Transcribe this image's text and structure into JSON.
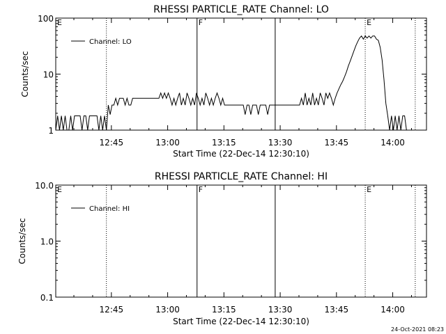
{
  "footer_timestamp": "24-Oct-2021 08:23",
  "chart_data": [
    {
      "type": "line",
      "title": "RHESSI PARTICLE_RATE Channel: LO",
      "xlabel": "Start Time (22-Dec-14 12:30:10)",
      "ylabel": "Counts/sec",
      "yscale": "log",
      "ylim": [
        1,
        100
      ],
      "yticks": [
        {
          "value": 1,
          "label": "1"
        },
        {
          "value": 10,
          "label": "10"
        },
        {
          "value": 100,
          "label": "100"
        }
      ],
      "xlim": [
        "12:30:10",
        "14:09:00"
      ],
      "xticks": [
        "12:45",
        "13:00",
        "13:15",
        "13:30",
        "13:45",
        "14:00"
      ],
      "legend": {
        "label": "Channel: LO",
        "position": "top-left"
      },
      "markers": [
        {
          "time": "12:30:10",
          "label": "E",
          "style": "none"
        },
        {
          "time": "12:43:40",
          "label": "",
          "style": "dotted"
        },
        {
          "time": "13:07:50",
          "label": "F",
          "style": "solid"
        },
        {
          "time": "13:28:40",
          "label": "",
          "style": "solid"
        },
        {
          "time": "13:52:40",
          "label": "E",
          "style": "dotted"
        },
        {
          "time": "14:06:00",
          "label": "",
          "style": "dotted"
        }
      ],
      "series": [
        {
          "name": "Channel: LO",
          "points": [
            [
              "12:30:10",
              1.0
            ],
            [
              "12:30:40",
              1.8
            ],
            [
              "12:31:10",
              1.0
            ],
            [
              "12:31:40",
              1.8
            ],
            [
              "12:32:10",
              1.0
            ],
            [
              "12:32:40",
              1.8
            ],
            [
              "12:33:10",
              1.0
            ],
            [
              "12:33:40",
              1.0
            ],
            [
              "12:34:10",
              1.8
            ],
            [
              "12:34:40",
              1.0
            ],
            [
              "12:35:10",
              1.8
            ],
            [
              "12:35:40",
              1.8
            ],
            [
              "12:36:10",
              1.8
            ],
            [
              "12:36:40",
              1.8
            ],
            [
              "12:37:10",
              1.0
            ],
            [
              "12:37:40",
              1.8
            ],
            [
              "12:38:10",
              1.8
            ],
            [
              "12:38:40",
              1.0
            ],
            [
              "12:39:10",
              1.8
            ],
            [
              "12:39:40",
              1.8
            ],
            [
              "12:40:10",
              1.8
            ],
            [
              "12:40:40",
              1.8
            ],
            [
              "12:41:10",
              1.8
            ],
            [
              "12:41:40",
              1.0
            ],
            [
              "12:42:10",
              1.8
            ],
            [
              "12:42:40",
              1.0
            ],
            [
              "12:43:10",
              1.8
            ],
            [
              "12:43:40",
              1.0
            ],
            [
              "12:44:10",
              2.8
            ],
            [
              "12:44:40",
              1.9
            ],
            [
              "12:45:10",
              2.8
            ],
            [
              "12:45:40",
              2.8
            ],
            [
              "12:46:10",
              3.7
            ],
            [
              "12:46:40",
              2.8
            ],
            [
              "12:47:10",
              3.7
            ],
            [
              "12:47:40",
              3.7
            ],
            [
              "12:48:10",
              3.7
            ],
            [
              "12:48:40",
              2.8
            ],
            [
              "12:49:10",
              3.7
            ],
            [
              "12:49:40",
              2.8
            ],
            [
              "12:50:10",
              2.8
            ],
            [
              "12:50:40",
              3.7
            ],
            [
              "12:51:10",
              3.7
            ],
            [
              "12:51:40",
              3.7
            ],
            [
              "12:52:40",
              3.7
            ],
            [
              "12:53:40",
              3.7
            ],
            [
              "12:54:40",
              3.7
            ],
            [
              "12:55:40",
              3.7
            ],
            [
              "12:56:40",
              3.7
            ],
            [
              "12:57:40",
              3.7
            ],
            [
              "12:58:10",
              4.6
            ],
            [
              "12:58:40",
              3.7
            ],
            [
              "12:59:10",
              4.6
            ],
            [
              "12:59:40",
              3.7
            ],
            [
              "13:00:10",
              4.6
            ],
            [
              "13:00:40",
              3.7
            ],
            [
              "13:01:10",
              2.8
            ],
            [
              "13:01:40",
              3.7
            ],
            [
              "13:02:10",
              2.8
            ],
            [
              "13:02:40",
              3.7
            ],
            [
              "13:03:10",
              4.6
            ],
            [
              "13:03:40",
              2.8
            ],
            [
              "13:04:10",
              3.7
            ],
            [
              "13:04:40",
              2.8
            ],
            [
              "13:05:10",
              4.6
            ],
            [
              "13:05:40",
              3.7
            ],
            [
              "13:06:10",
              2.8
            ],
            [
              "13:06:40",
              3.7
            ],
            [
              "13:07:10",
              2.8
            ],
            [
              "13:07:40",
              4.6
            ],
            [
              "13:08:10",
              3.7
            ],
            [
              "13:08:40",
              2.8
            ],
            [
              "13:09:10",
              3.7
            ],
            [
              "13:09:40",
              2.8
            ],
            [
              "13:10:10",
              4.6
            ],
            [
              "13:10:40",
              3.7
            ],
            [
              "13:11:10",
              2.8
            ],
            [
              "13:11:40",
              3.7
            ],
            [
              "13:12:10",
              2.8
            ],
            [
              "13:12:40",
              3.7
            ],
            [
              "13:13:10",
              4.6
            ],
            [
              "13:13:40",
              3.7
            ],
            [
              "13:14:10",
              2.8
            ],
            [
              "13:14:40",
              3.7
            ],
            [
              "13:15:10",
              2.8
            ],
            [
              "13:15:40",
              2.8
            ],
            [
              "13:16:10",
              2.8
            ],
            [
              "13:16:40",
              2.8
            ],
            [
              "13:17:10",
              2.8
            ],
            [
              "13:17:40",
              2.8
            ],
            [
              "13:18:10",
              2.8
            ],
            [
              "13:18:40",
              2.8
            ],
            [
              "13:19:10",
              2.8
            ],
            [
              "13:19:40",
              2.8
            ],
            [
              "13:20:10",
              2.8
            ],
            [
              "13:20:40",
              1.9
            ],
            [
              "13:21:10",
              2.8
            ],
            [
              "13:21:40",
              2.8
            ],
            [
              "13:22:10",
              1.9
            ],
            [
              "13:22:40",
              2.8
            ],
            [
              "13:23:10",
              2.8
            ],
            [
              "13:23:40",
              2.8
            ],
            [
              "13:24:10",
              1.9
            ],
            [
              "13:24:40",
              2.8
            ],
            [
              "13:25:10",
              2.8
            ],
            [
              "13:25:40",
              2.8
            ],
            [
              "13:26:10",
              2.8
            ],
            [
              "13:26:40",
              1.9
            ],
            [
              "13:27:10",
              2.8
            ],
            [
              "13:27:40",
              2.8
            ],
            [
              "13:28:40",
              2.8
            ],
            [
              "13:29:40",
              2.8
            ],
            [
              "13:30:40",
              2.8
            ],
            [
              "13:31:40",
              2.8
            ],
            [
              "13:32:40",
              2.8
            ],
            [
              "13:33:40",
              2.8
            ],
            [
              "13:34:40",
              2.8
            ],
            [
              "13:35:10",
              2.8
            ],
            [
              "13:35:40",
              3.7
            ],
            [
              "13:36:10",
              2.8
            ],
            [
              "13:36:40",
              4.6
            ],
            [
              "13:37:10",
              2.8
            ],
            [
              "13:37:40",
              3.7
            ],
            [
              "13:38:10",
              2.8
            ],
            [
              "13:38:40",
              4.6
            ],
            [
              "13:39:10",
              2.8
            ],
            [
              "13:39:40",
              3.7
            ],
            [
              "13:40:10",
              2.8
            ],
            [
              "13:40:40",
              4.6
            ],
            [
              "13:41:10",
              3.7
            ],
            [
              "13:41:40",
              2.8
            ],
            [
              "13:42:10",
              4.6
            ],
            [
              "13:42:40",
              3.7
            ],
            [
              "13:43:10",
              4.6
            ],
            [
              "13:43:40",
              3.7
            ],
            [
              "13:44:10",
              2.8
            ],
            [
              "13:44:40",
              3.7
            ],
            [
              "13:45:10",
              4.6
            ],
            [
              "13:45:40",
              5.5
            ],
            [
              "13:46:10",
              6.5
            ],
            [
              "13:46:40",
              7.5
            ],
            [
              "13:47:10",
              9.0
            ],
            [
              "13:47:40",
              11.0
            ],
            [
              "13:48:10",
              14.0
            ],
            [
              "13:48:40",
              17.0
            ],
            [
              "13:49:10",
              21.0
            ],
            [
              "13:49:40",
              26.0
            ],
            [
              "13:50:10",
              32.0
            ],
            [
              "13:50:40",
              38.0
            ],
            [
              "13:51:10",
              44.0
            ],
            [
              "13:51:40",
              48.0
            ],
            [
              "13:52:10",
              42.0
            ],
            [
              "13:52:40",
              48.0
            ],
            [
              "13:53:10",
              44.0
            ],
            [
              "13:53:40",
              48.0
            ],
            [
              "13:54:10",
              44.0
            ],
            [
              "13:54:40",
              48.0
            ],
            [
              "13:55:10",
              48.0
            ],
            [
              "13:55:40",
              42.0
            ],
            [
              "13:56:10",
              40.0
            ],
            [
              "13:56:40",
              30.0
            ],
            [
              "13:57:10",
              18.0
            ],
            [
              "13:57:40",
              8.0
            ],
            [
              "13:58:10",
              3.0
            ],
            [
              "13:58:40",
              1.8
            ],
            [
              "13:59:10",
              1.0
            ],
            [
              "13:59:40",
              1.8
            ],
            [
              "14:00:10",
              1.0
            ],
            [
              "14:00:40",
              1.8
            ],
            [
              "14:01:10",
              1.0
            ],
            [
              "14:01:40",
              1.8
            ],
            [
              "14:02:10",
              1.0
            ],
            [
              "14:02:40",
              1.8
            ],
            [
              "14:03:10",
              1.8
            ],
            [
              "14:03:40",
              1.0
            ]
          ]
        }
      ]
    },
    {
      "type": "line",
      "title": "RHESSI PARTICLE_RATE Channel: HI",
      "xlabel": "Start Time (22-Dec-14 12:30:10)",
      "ylabel": "Counts/sec",
      "yscale": "log",
      "ylim": [
        0.1,
        10
      ],
      "yticks": [
        {
          "value": 0.1,
          "label": "0.1"
        },
        {
          "value": 1,
          "label": "1.0"
        },
        {
          "value": 10,
          "label": "10.0"
        }
      ],
      "xlim": [
        "12:30:10",
        "14:09:00"
      ],
      "xticks": [
        "12:45",
        "13:00",
        "13:15",
        "13:30",
        "13:45",
        "14:00"
      ],
      "legend": {
        "label": "Channel: HI",
        "position": "top-left"
      },
      "markers": [
        {
          "time": "12:30:10",
          "label": "E",
          "style": "none"
        },
        {
          "time": "12:43:40",
          "label": "",
          "style": "dotted"
        },
        {
          "time": "13:07:50",
          "label": "F",
          "style": "solid"
        },
        {
          "time": "13:28:40",
          "label": "",
          "style": "solid"
        },
        {
          "time": "13:52:40",
          "label": "E",
          "style": "dotted"
        },
        {
          "time": "14:06:00",
          "label": "",
          "style": "dotted"
        }
      ],
      "series": [
        {
          "name": "Channel: HI",
          "points": []
        }
      ]
    }
  ]
}
